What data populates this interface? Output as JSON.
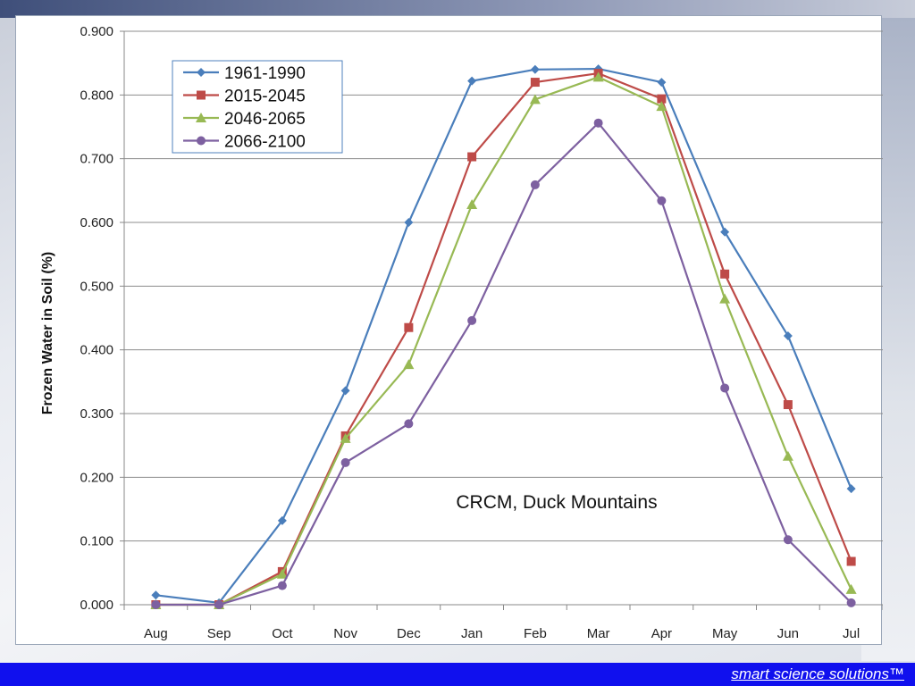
{
  "chart_data": {
    "type": "line",
    "ylabel": "Frozen Water in Soil (%)",
    "xlabel": "",
    "annotation": "CRCM, Duck Mountains",
    "ylim": [
      0,
      0.9
    ],
    "ytick_labels": [
      "0.000",
      "0.100",
      "0.200",
      "0.300",
      "0.400",
      "0.500",
      "0.600",
      "0.700",
      "0.800",
      "0.900"
    ],
    "categories": [
      "Aug",
      "Sep",
      "Oct",
      "Nov",
      "Dec",
      "Jan",
      "Feb",
      "Mar",
      "Apr",
      "May",
      "Jun",
      "Jul"
    ],
    "grid": "horizontal",
    "legend_position": "top-left",
    "series": [
      {
        "name": "1961-1990",
        "color": "#4a7ebb",
        "marker": "diamond",
        "values": [
          0.015,
          0.003,
          0.132,
          0.336,
          0.6,
          0.822,
          0.84,
          0.841,
          0.82,
          0.585,
          0.422,
          0.182
        ]
      },
      {
        "name": "2015-2045",
        "color": "#be4b48",
        "marker": "square",
        "values": [
          0.0,
          0.0,
          0.052,
          0.265,
          0.435,
          0.703,
          0.82,
          0.834,
          0.794,
          0.519,
          0.314,
          0.068
        ]
      },
      {
        "name": "2046-2065",
        "color": "#98b954",
        "marker": "triangle",
        "values": [
          0.0,
          0.0,
          0.048,
          0.261,
          0.377,
          0.628,
          0.793,
          0.828,
          0.782,
          0.48,
          0.233,
          0.024
        ]
      },
      {
        "name": "2066-2100",
        "color": "#7d60a0",
        "marker": "circle",
        "values": [
          0.0,
          0.0,
          0.03,
          0.223,
          0.284,
          0.446,
          0.659,
          0.756,
          0.634,
          0.34,
          0.102,
          0.003
        ]
      }
    ]
  },
  "footer": {
    "link_text": "smart science solutions™"
  }
}
